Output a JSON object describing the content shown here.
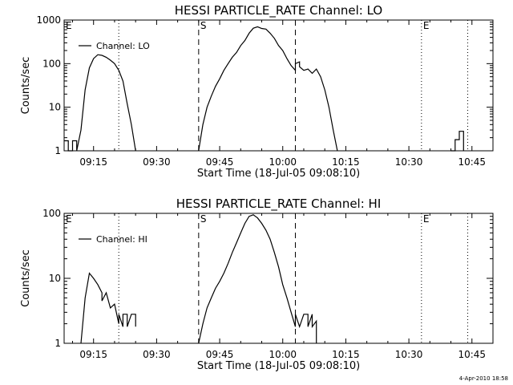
{
  "footer": {
    "timestamp": "4-Apr-2010 18:58"
  },
  "chart_data": [
    {
      "type": "line",
      "title": "HESSI PARTICLE_RATE Channel: LO",
      "xlabel": "Start Time (18-Jul-05 09:08:10)",
      "ylabel": "Counts/sec",
      "x_unit": "time (HH:MM, 18-Jul-05 UT)",
      "xlim": [
        "09:08",
        "10:50"
      ],
      "ylim": [
        1,
        1000
      ],
      "yscale": "log",
      "x_ticks": [
        "09:15",
        "09:30",
        "09:45",
        "10:00",
        "10:15",
        "10:30",
        "10:45"
      ],
      "y_ticks": [
        "1",
        "10",
        "100",
        "1000"
      ],
      "legend": {
        "position": "top-left",
        "entries": [
          "Channel: LO"
        ]
      },
      "markers": [
        {
          "label": "E",
          "time": "09:08",
          "style": "dotted"
        },
        {
          "label": "",
          "time": "09:21",
          "style": "dotted"
        },
        {
          "label": "S",
          "time": "09:40",
          "style": "dashed"
        },
        {
          "label": "",
          "time": "10:03",
          "style": "dashed"
        },
        {
          "label": "E",
          "time": "10:33",
          "style": "dotted"
        },
        {
          "label": "",
          "time": "10:44",
          "style": "dotted"
        }
      ],
      "series": [
        {
          "name": "Channel: LO",
          "segments": [
            [
              [
                "09:08",
                1.7
              ],
              [
                "09:09",
                1.7
              ],
              [
                "09:09",
                1
              ],
              [
                "09:10",
                1
              ],
              [
                "09:10",
                1.7
              ],
              [
                "09:11",
                1.7
              ],
              [
                "09:11",
                1
              ],
              [
                "09:12",
                3
              ],
              [
                "09:13",
                25
              ],
              [
                "09:14",
                80
              ],
              [
                "09:15",
                130
              ],
              [
                "09:16",
                160
              ],
              [
                "09:17",
                155
              ],
              [
                "09:18",
                140
              ],
              [
                "09:19",
                120
              ],
              [
                "09:20",
                100
              ],
              [
                "09:21",
                70
              ],
              [
                "09:22",
                40
              ],
              [
                "09:23",
                12
              ],
              [
                "09:24",
                4
              ],
              [
                "09:25",
                1
              ]
            ],
            [
              [
                "09:40",
                1
              ],
              [
                "09:41",
                4
              ],
              [
                "09:42",
                10
              ],
              [
                "09:43",
                18
              ],
              [
                "09:44",
                30
              ],
              [
                "09:45",
                45
              ],
              [
                "09:46",
                70
              ],
              [
                "09:47",
                100
              ],
              [
                "09:48",
                140
              ],
              [
                "09:49",
                180
              ],
              [
                "09:50",
                260
              ],
              [
                "09:51",
                340
              ],
              [
                "09:52",
                500
              ],
              [
                "09:53",
                650
              ],
              [
                "09:54",
                700
              ],
              [
                "09:55",
                640
              ],
              [
                "09:56",
                620
              ],
              [
                "09:57",
                500
              ],
              [
                "09:58",
                380
              ],
              [
                "09:59",
                260
              ],
              [
                "10:00",
                200
              ],
              [
                "10:01",
                130
              ],
              [
                "10:02",
                90
              ],
              [
                "10:03",
                70
              ],
              [
                "10:03",
                100
              ],
              [
                "10:04",
                110
              ],
              [
                "10:04",
                85
              ],
              [
                "10:05",
                70
              ],
              [
                "10:06",
                75
              ],
              [
                "10:07",
                60
              ],
              [
                "10:08",
                75
              ],
              [
                "10:09",
                50
              ],
              [
                "10:10",
                25
              ],
              [
                "10:11",
                10
              ],
              [
                "10:12",
                3
              ],
              [
                "10:13",
                1
              ]
            ],
            [
              [
                "10:40",
                1
              ],
              [
                "10:41",
                1
              ],
              [
                "10:41",
                1.8
              ],
              [
                "10:42",
                1.8
              ],
              [
                "10:42",
                2.8
              ],
              [
                "10:43",
                2.8
              ],
              [
                "10:43",
                1
              ]
            ]
          ]
        }
      ]
    },
    {
      "type": "line",
      "title": "HESSI PARTICLE_RATE Channel: HI",
      "xlabel": "Start Time (18-Jul-05 09:08:10)",
      "ylabel": "Counts/sec",
      "x_unit": "time (HH:MM, 18-Jul-05 UT)",
      "xlim": [
        "09:08",
        "10:50"
      ],
      "ylim": [
        1,
        100
      ],
      "yscale": "log",
      "x_ticks": [
        "09:15",
        "09:30",
        "09:45",
        "10:00",
        "10:15",
        "10:30",
        "10:45"
      ],
      "y_ticks": [
        "1",
        "10",
        "100"
      ],
      "legend": {
        "position": "top-left",
        "entries": [
          "Channel: HI"
        ]
      },
      "markers": [
        {
          "label": "E",
          "time": "09:08",
          "style": "dotted"
        },
        {
          "label": "",
          "time": "09:21",
          "style": "dotted"
        },
        {
          "label": "S",
          "time": "09:40",
          "style": "dashed"
        },
        {
          "label": "",
          "time": "10:03",
          "style": "dashed"
        },
        {
          "label": "E",
          "time": "10:33",
          "style": "dotted"
        },
        {
          "label": "",
          "time": "10:44",
          "style": "dotted"
        }
      ],
      "series": [
        {
          "name": "Channel: HI",
          "segments": [
            [
              [
                "09:12",
                1
              ],
              [
                "09:13",
                5
              ],
              [
                "09:14",
                12
              ],
              [
                "09:15",
                10
              ],
              [
                "09:16",
                8
              ],
              [
                "09:17",
                6
              ],
              [
                "09:17",
                4.5
              ],
              [
                "09:18",
                6
              ],
              [
                "09:19",
                3.5
              ],
              [
                "09:20",
                4
              ],
              [
                "09:21",
                2
              ],
              [
                "09:21",
                2.8
              ],
              [
                "09:22",
                1.8
              ],
              [
                "09:22",
                2.8
              ],
              [
                "09:23",
                2.8
              ],
              [
                "09:23",
                1.8
              ],
              [
                "09:24",
                2.8
              ],
              [
                "09:25",
                2.8
              ],
              [
                "09:25",
                1.8
              ]
            ],
            [
              [
                "09:40",
                1
              ],
              [
                "09:41",
                2
              ],
              [
                "09:42",
                3.5
              ],
              [
                "09:43",
                5
              ],
              [
                "09:44",
                7
              ],
              [
                "09:45",
                9
              ],
              [
                "09:46",
                12
              ],
              [
                "09:47",
                17
              ],
              [
                "09:48",
                25
              ],
              [
                "09:49",
                35
              ],
              [
                "09:50",
                50
              ],
              [
                "09:51",
                70
              ],
              [
                "09:52",
                90
              ],
              [
                "09:53",
                95
              ],
              [
                "09:54",
                85
              ],
              [
                "09:55",
                70
              ],
              [
                "09:56",
                55
              ],
              [
                "09:57",
                40
              ],
              [
                "09:58",
                25
              ],
              [
                "09:59",
                15
              ],
              [
                "10:00",
                8
              ],
              [
                "10:01",
                5
              ],
              [
                "10:02",
                3
              ],
              [
                "10:03",
                1.8
              ],
              [
                "10:03",
                2.8
              ],
              [
                "10:04",
                1.8
              ],
              [
                "10:05",
                2.8
              ],
              [
                "10:06",
                2.8
              ],
              [
                "10:06",
                1.8
              ],
              [
                "10:07",
                2.8
              ],
              [
                "10:07",
                1.8
              ],
              [
                "10:08",
                2.2
              ],
              [
                "10:08",
                1
              ]
            ]
          ]
        }
      ]
    }
  ]
}
